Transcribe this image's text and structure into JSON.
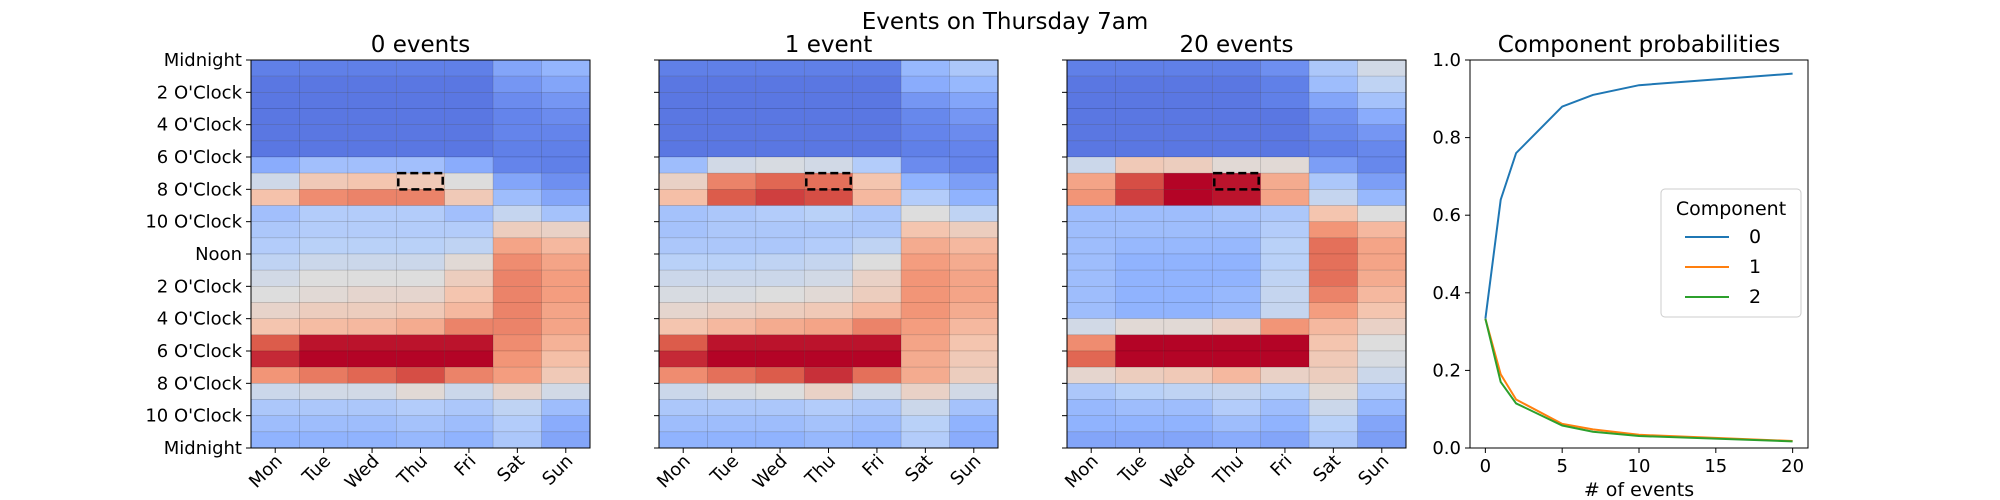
{
  "figure": {
    "suptitle": "Events on Thursday 7am"
  },
  "chart_data": [
    {
      "type": "heatmap",
      "title": "0 events",
      "x_categories": [
        "Mon",
        "Tue",
        "Wed",
        "Thu",
        "Fri",
        "Sat",
        "Sun"
      ],
      "y_ticklabels": [
        "Midnight",
        "2 O'Clock",
        "4 O'Clock",
        "6 O'Clock",
        "8 O'Clock",
        "10 O'Clock",
        "Noon",
        "2 O'Clock",
        "4 O'Clock",
        "6 O'Clock",
        "8 O'Clock",
        "10 O'Clock",
        "Midnight"
      ],
      "rows": 24,
      "colormap": "coolwarm",
      "value_range": [
        0,
        1
      ],
      "highlight": {
        "day": "Thu",
        "hour": 7
      },
      "values": [
        [
          0.12,
          0.12,
          0.12,
          0.12,
          0.12,
          0.22,
          0.27
        ],
        [
          0.1,
          0.1,
          0.1,
          0.1,
          0.1,
          0.18,
          0.22
        ],
        [
          0.1,
          0.1,
          0.1,
          0.1,
          0.1,
          0.15,
          0.18
        ],
        [
          0.1,
          0.1,
          0.1,
          0.1,
          0.1,
          0.13,
          0.15
        ],
        [
          0.1,
          0.1,
          0.1,
          0.1,
          0.1,
          0.13,
          0.13
        ],
        [
          0.1,
          0.1,
          0.1,
          0.1,
          0.1,
          0.12,
          0.12
        ],
        [
          0.24,
          0.31,
          0.31,
          0.31,
          0.24,
          0.13,
          0.12
        ],
        [
          0.45,
          0.6,
          0.62,
          0.6,
          0.5,
          0.22,
          0.16
        ],
        [
          0.63,
          0.78,
          0.8,
          0.8,
          0.6,
          0.3,
          0.22
        ],
        [
          0.31,
          0.36,
          0.36,
          0.36,
          0.31,
          0.42,
          0.32
        ],
        [
          0.34,
          0.36,
          0.36,
          0.36,
          0.36,
          0.58,
          0.56
        ],
        [
          0.36,
          0.38,
          0.38,
          0.38,
          0.4,
          0.72,
          0.66
        ],
        [
          0.4,
          0.44,
          0.44,
          0.44,
          0.52,
          0.78,
          0.72
        ],
        [
          0.46,
          0.5,
          0.5,
          0.5,
          0.58,
          0.8,
          0.74
        ],
        [
          0.5,
          0.52,
          0.54,
          0.54,
          0.62,
          0.8,
          0.74
        ],
        [
          0.55,
          0.58,
          0.58,
          0.6,
          0.66,
          0.8,
          0.72
        ],
        [
          0.62,
          0.65,
          0.66,
          0.7,
          0.8,
          0.8,
          0.72
        ],
        [
          0.88,
          0.98,
          0.98,
          0.98,
          0.98,
          0.78,
          0.68
        ],
        [
          0.95,
          1.0,
          1.0,
          1.0,
          1.0,
          0.76,
          0.64
        ],
        [
          0.76,
          0.82,
          0.86,
          0.9,
          0.8,
          0.74,
          0.6
        ],
        [
          0.44,
          0.46,
          0.46,
          0.52,
          0.44,
          0.55,
          0.46
        ],
        [
          0.34,
          0.34,
          0.34,
          0.36,
          0.34,
          0.4,
          0.3
        ],
        [
          0.3,
          0.3,
          0.3,
          0.32,
          0.3,
          0.36,
          0.24
        ],
        [
          0.26,
          0.26,
          0.26,
          0.28,
          0.26,
          0.34,
          0.22
        ]
      ]
    },
    {
      "type": "heatmap",
      "title": "1 event",
      "x_categories": [
        "Mon",
        "Tue",
        "Wed",
        "Thu",
        "Fri",
        "Sat",
        "Sun"
      ],
      "rows": 24,
      "colormap": "coolwarm",
      "value_range": [
        0,
        1
      ],
      "highlight": {
        "day": "Thu",
        "hour": 7
      },
      "values": [
        [
          0.12,
          0.12,
          0.12,
          0.12,
          0.12,
          0.28,
          0.34
        ],
        [
          0.1,
          0.1,
          0.1,
          0.1,
          0.1,
          0.24,
          0.28
        ],
        [
          0.1,
          0.1,
          0.1,
          0.1,
          0.1,
          0.18,
          0.22
        ],
        [
          0.1,
          0.1,
          0.1,
          0.1,
          0.1,
          0.14,
          0.18
        ],
        [
          0.1,
          0.1,
          0.1,
          0.1,
          0.1,
          0.13,
          0.15
        ],
        [
          0.1,
          0.1,
          0.1,
          0.1,
          0.1,
          0.12,
          0.13
        ],
        [
          0.3,
          0.46,
          0.48,
          0.46,
          0.36,
          0.15,
          0.13
        ],
        [
          0.56,
          0.8,
          0.86,
          0.84,
          0.62,
          0.26,
          0.2
        ],
        [
          0.64,
          0.88,
          0.92,
          0.9,
          0.66,
          0.36,
          0.26
        ],
        [
          0.32,
          0.34,
          0.36,
          0.38,
          0.34,
          0.5,
          0.4
        ],
        [
          0.32,
          0.34,
          0.34,
          0.34,
          0.34,
          0.62,
          0.58
        ],
        [
          0.34,
          0.34,
          0.34,
          0.36,
          0.4,
          0.7,
          0.66
        ],
        [
          0.38,
          0.38,
          0.4,
          0.42,
          0.5,
          0.74,
          0.7
        ],
        [
          0.44,
          0.44,
          0.44,
          0.46,
          0.56,
          0.76,
          0.72
        ],
        [
          0.48,
          0.48,
          0.5,
          0.52,
          0.58,
          0.76,
          0.72
        ],
        [
          0.54,
          0.56,
          0.58,
          0.6,
          0.66,
          0.76,
          0.7
        ],
        [
          0.62,
          0.66,
          0.7,
          0.72,
          0.8,
          0.74,
          0.66
        ],
        [
          0.88,
          0.98,
          0.98,
          0.98,
          0.98,
          0.72,
          0.62
        ],
        [
          0.95,
          1.0,
          1.0,
          1.0,
          1.0,
          0.7,
          0.6
        ],
        [
          0.78,
          0.84,
          0.88,
          0.94,
          0.84,
          0.7,
          0.58
        ],
        [
          0.44,
          0.48,
          0.5,
          0.56,
          0.46,
          0.56,
          0.46
        ],
        [
          0.34,
          0.34,
          0.34,
          0.36,
          0.34,
          0.44,
          0.32
        ],
        [
          0.3,
          0.3,
          0.3,
          0.32,
          0.3,
          0.38,
          0.26
        ],
        [
          0.26,
          0.26,
          0.26,
          0.28,
          0.26,
          0.36,
          0.24
        ]
      ]
    },
    {
      "type": "heatmap",
      "title": "20 events",
      "x_categories": [
        "Mon",
        "Tue",
        "Wed",
        "Thu",
        "Fri",
        "Sat",
        "Sun"
      ],
      "rows": 24,
      "colormap": "coolwarm",
      "value_range": [
        0,
        1
      ],
      "highlight": {
        "day": "Thu",
        "hour": 7
      },
      "values": [
        [
          0.12,
          0.12,
          0.12,
          0.12,
          0.16,
          0.34,
          0.46
        ],
        [
          0.1,
          0.1,
          0.1,
          0.1,
          0.12,
          0.3,
          0.4
        ],
        [
          0.1,
          0.1,
          0.1,
          0.1,
          0.12,
          0.22,
          0.32
        ],
        [
          0.1,
          0.1,
          0.1,
          0.1,
          0.1,
          0.16,
          0.24
        ],
        [
          0.1,
          0.1,
          0.1,
          0.1,
          0.1,
          0.14,
          0.18
        ],
        [
          0.1,
          0.1,
          0.1,
          0.1,
          0.1,
          0.12,
          0.14
        ],
        [
          0.44,
          0.6,
          0.58,
          0.52,
          0.52,
          0.2,
          0.14
        ],
        [
          0.72,
          0.9,
          1.0,
          0.98,
          0.7,
          0.34,
          0.2
        ],
        [
          0.76,
          0.92,
          1.0,
          0.98,
          0.72,
          0.42,
          0.28
        ],
        [
          0.3,
          0.3,
          0.3,
          0.32,
          0.34,
          0.62,
          0.5
        ],
        [
          0.3,
          0.3,
          0.3,
          0.3,
          0.36,
          0.76,
          0.66
        ],
        [
          0.3,
          0.28,
          0.28,
          0.28,
          0.38,
          0.84,
          0.72
        ],
        [
          0.3,
          0.26,
          0.26,
          0.26,
          0.38,
          0.84,
          0.72
        ],
        [
          0.3,
          0.26,
          0.26,
          0.26,
          0.4,
          0.84,
          0.7
        ],
        [
          0.3,
          0.26,
          0.26,
          0.28,
          0.42,
          0.8,
          0.66
        ],
        [
          0.3,
          0.26,
          0.26,
          0.28,
          0.42,
          0.74,
          0.62
        ],
        [
          0.46,
          0.52,
          0.52,
          0.56,
          0.76,
          0.66,
          0.56
        ],
        [
          0.78,
          1.0,
          1.0,
          1.0,
          1.0,
          0.62,
          0.5
        ],
        [
          0.86,
          1.0,
          1.0,
          1.0,
          1.0,
          0.6,
          0.48
        ],
        [
          0.54,
          0.58,
          0.6,
          0.66,
          0.56,
          0.58,
          0.44
        ],
        [
          0.34,
          0.38,
          0.4,
          0.42,
          0.38,
          0.52,
          0.36
        ],
        [
          0.28,
          0.3,
          0.3,
          0.36,
          0.3,
          0.44,
          0.28
        ],
        [
          0.26,
          0.26,
          0.26,
          0.3,
          0.26,
          0.38,
          0.22
        ],
        [
          0.22,
          0.22,
          0.22,
          0.24,
          0.22,
          0.34,
          0.2
        ]
      ]
    },
    {
      "type": "line",
      "title": "Component probabilities",
      "xlabel": "# of events",
      "ylabel": "",
      "xlim": [
        -1,
        21
      ],
      "ylim": [
        0,
        1
      ],
      "xticks": [
        0,
        5,
        10,
        15,
        20
      ],
      "yticks": [
        0.0,
        0.2,
        0.4,
        0.6,
        0.8,
        1.0
      ],
      "legend": {
        "title": "Component",
        "placement": "center-right"
      },
      "x": [
        0,
        1,
        2,
        5,
        7,
        10,
        20
      ],
      "series": [
        {
          "name": "0",
          "color": "#1f77b4",
          "values": [
            0.333,
            0.64,
            0.76,
            0.88,
            0.91,
            0.935,
            0.965
          ]
        },
        {
          "name": "1",
          "color": "#ff7f0e",
          "values": [
            0.333,
            0.19,
            0.125,
            0.062,
            0.048,
            0.034,
            0.018
          ]
        },
        {
          "name": "2",
          "color": "#2ca02c",
          "values": [
            0.333,
            0.17,
            0.115,
            0.058,
            0.042,
            0.031,
            0.017
          ]
        }
      ]
    }
  ]
}
